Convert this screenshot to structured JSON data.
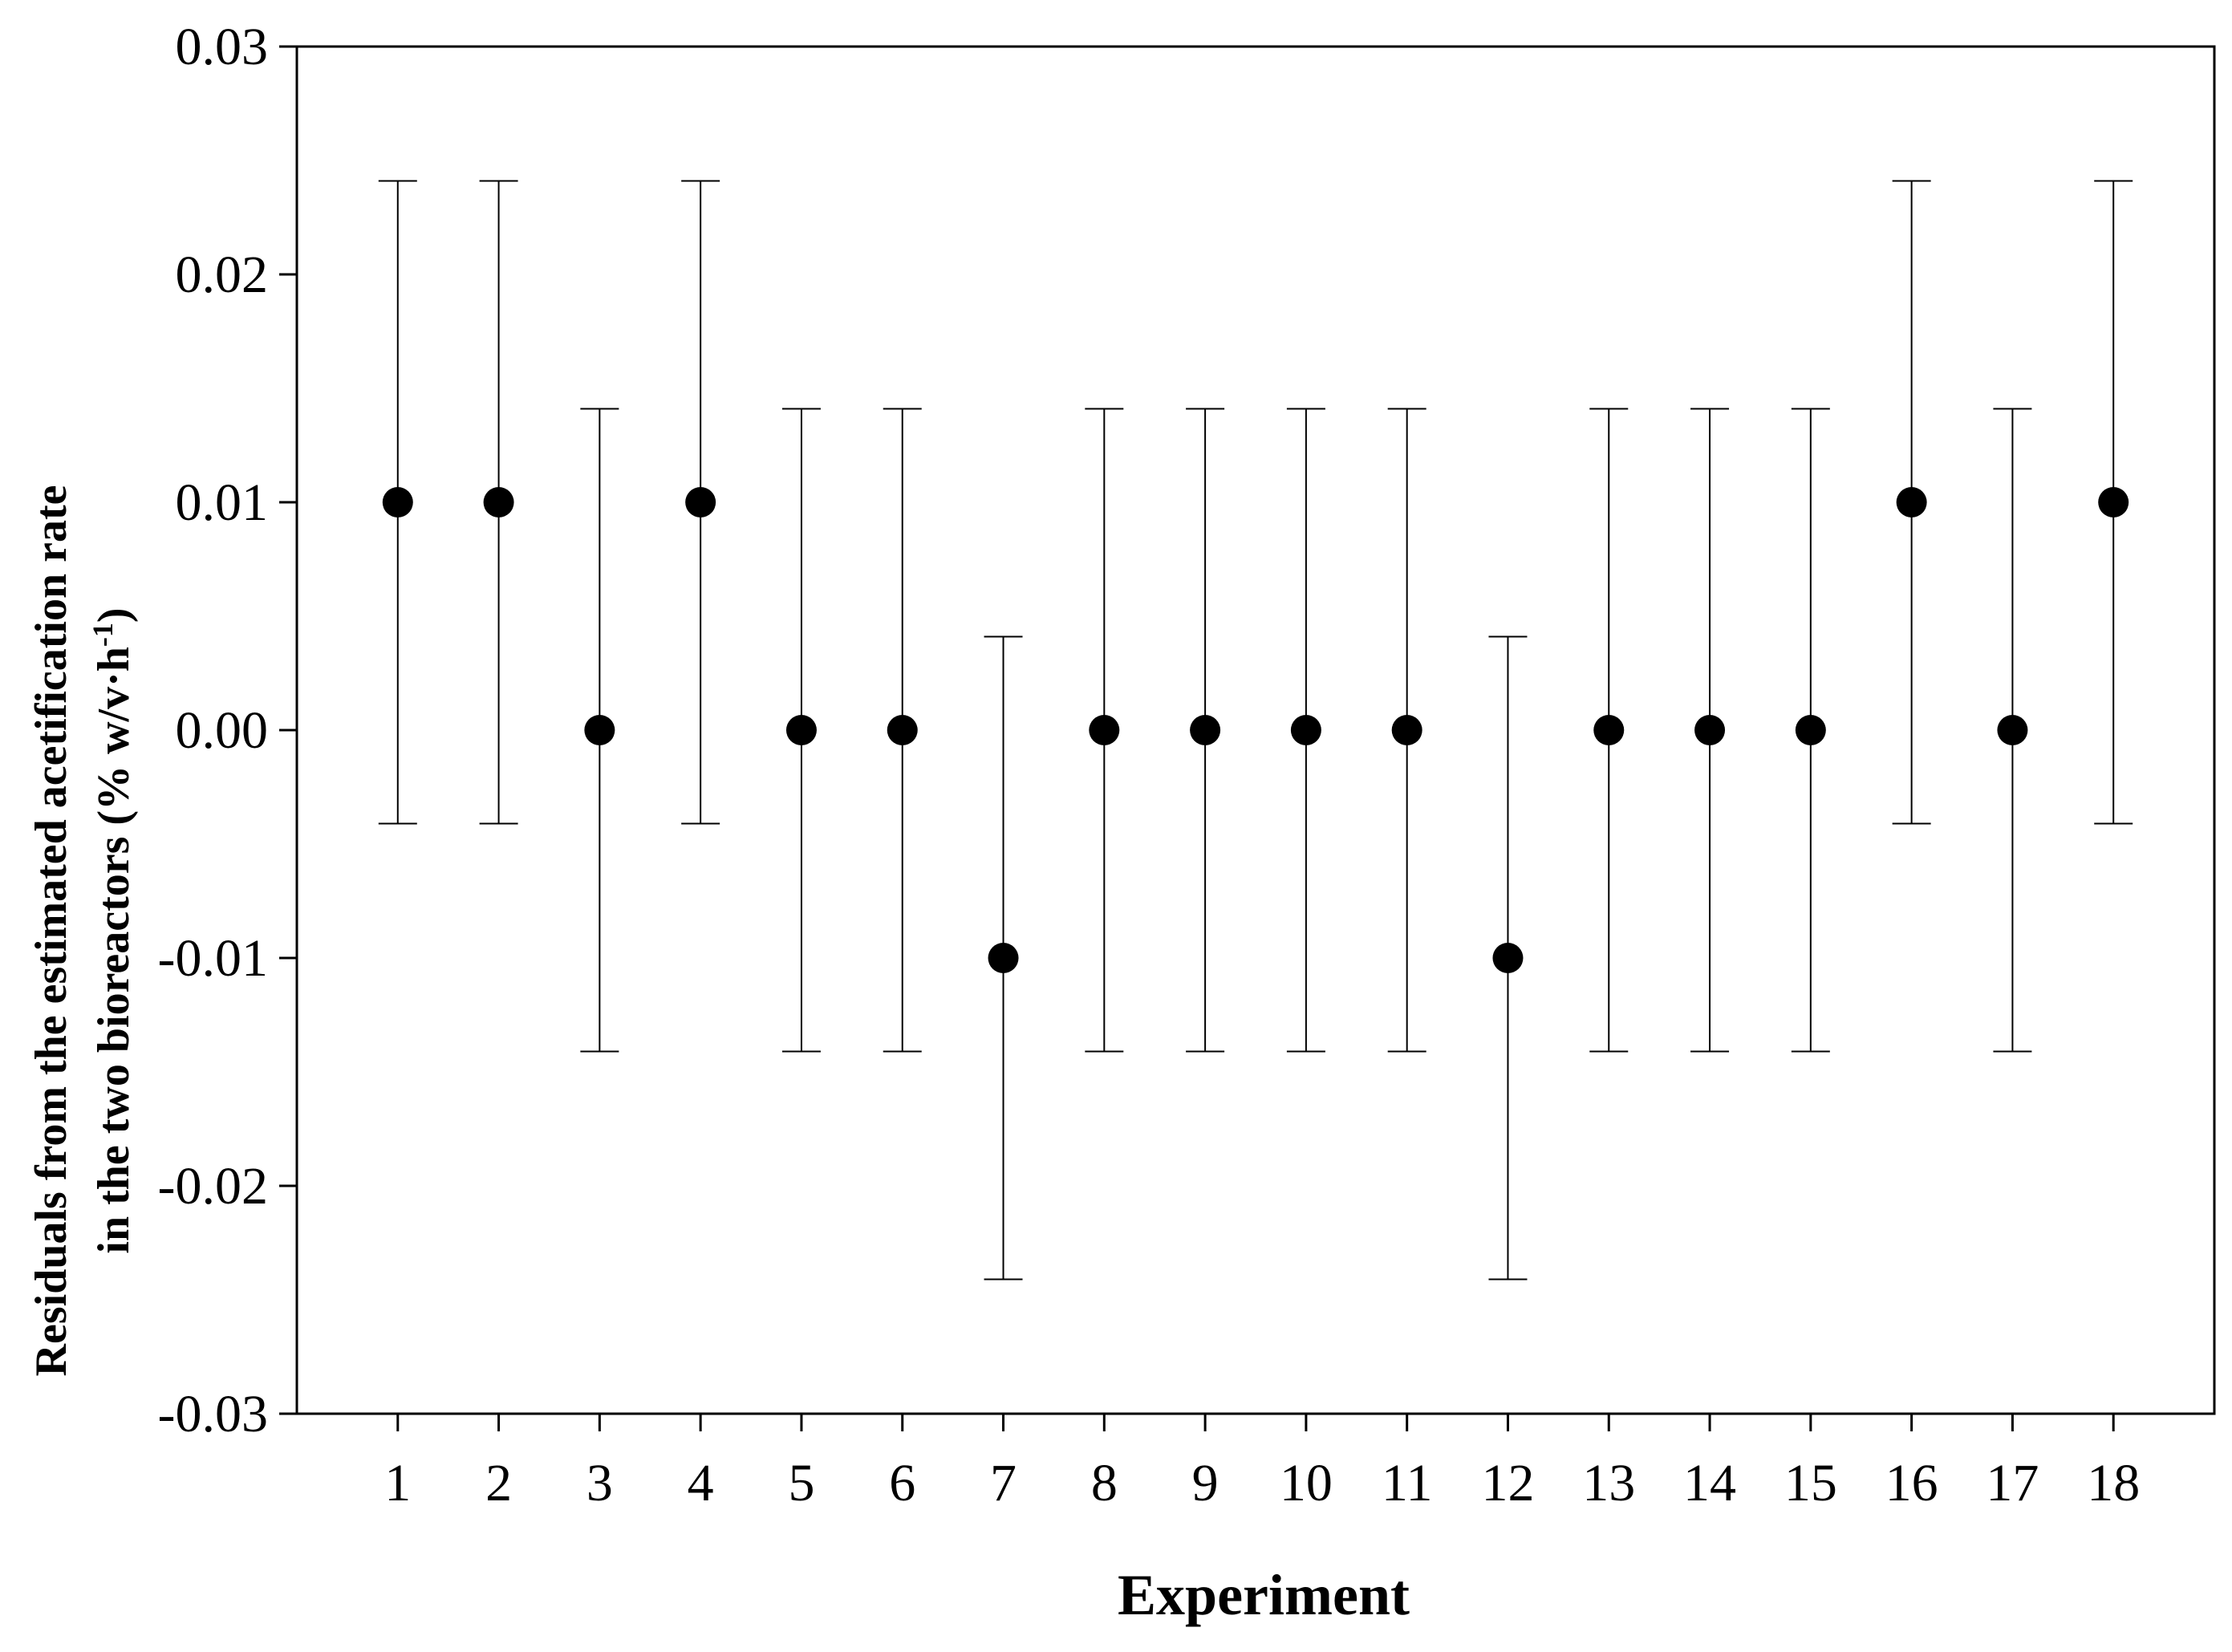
{
  "chart_data": {
    "type": "scatter",
    "xlabel": "Experiment",
    "ylabel_line1": "Residuals from the estimated acetification rate",
    "ylabel_line2_main": "in the two bioreactors (% w/v·h",
    "ylabel_line2_sup": "-1",
    "ylabel_line2_end": ")",
    "x_tick_labels": [
      "1",
      "2",
      "3",
      "4",
      "5",
      "6",
      "7",
      "8",
      "9",
      "10",
      "11",
      "12",
      "13",
      "14",
      "15",
      "16",
      "17",
      "18"
    ],
    "y_tick_labels": [
      "0.03",
      "0.02",
      "0.01",
      "0.00",
      "-0.01",
      "-0.02",
      "-0.03"
    ],
    "y_ticks": [
      0.03,
      0.02,
      0.01,
      0.0,
      -0.01,
      -0.02,
      -0.03
    ],
    "ylim": [
      -0.03,
      0.03
    ],
    "xlim": [
      0,
      19
    ],
    "grid": false,
    "marker_color": "#000000",
    "points": [
      {
        "x": 1,
        "y": 0.01,
        "err": 0.0141
      },
      {
        "x": 2,
        "y": 0.01,
        "err": 0.0141
      },
      {
        "x": 3,
        "y": 0.0,
        "err": 0.0141
      },
      {
        "x": 4,
        "y": 0.01,
        "err": 0.0141
      },
      {
        "x": 5,
        "y": 0.0,
        "err": 0.0141
      },
      {
        "x": 6,
        "y": 0.0,
        "err": 0.0141
      },
      {
        "x": 7,
        "y": -0.01,
        "err": 0.0141
      },
      {
        "x": 8,
        "y": 0.0,
        "err": 0.0141
      },
      {
        "x": 9,
        "y": 0.0,
        "err": 0.0141
      },
      {
        "x": 10,
        "y": 0.0,
        "err": 0.0141
      },
      {
        "x": 11,
        "y": 0.0,
        "err": 0.0141
      },
      {
        "x": 12,
        "y": -0.01,
        "err": 0.0141
      },
      {
        "x": 13,
        "y": 0.0,
        "err": 0.0141
      },
      {
        "x": 14,
        "y": 0.0,
        "err": 0.0141
      },
      {
        "x": 15,
        "y": 0.0,
        "err": 0.0141
      },
      {
        "x": 16,
        "y": 0.01,
        "err": 0.0141
      },
      {
        "x": 17,
        "y": 0.0,
        "err": 0.0141
      },
      {
        "x": 18,
        "y": 0.01,
        "err": 0.0141
      }
    ]
  }
}
